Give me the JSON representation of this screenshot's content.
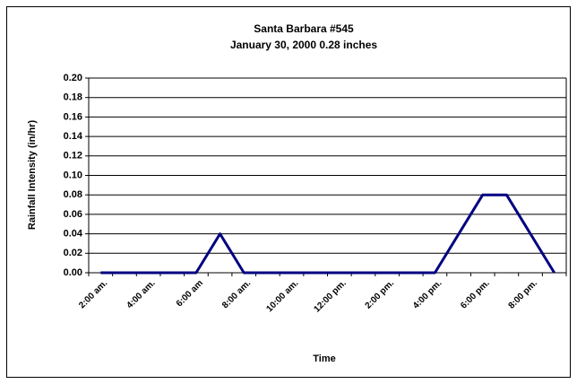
{
  "chart_data": {
    "type": "line",
    "title": "Santa Barbara #545",
    "subtitle": "January 30, 2000 0.28 inches",
    "x_label": "Time",
    "y_label": "Rainfall Intensity (in/hr)",
    "categories": [
      "2:00 am.",
      null,
      "4:00 am.",
      null,
      "6:00 am",
      null,
      "8:00 am.",
      null,
      "10:00 am.",
      null,
      "12:00 pm.",
      null,
      "2:00 pm.",
      null,
      "4:00 pm.",
      null,
      "6:00 pm.",
      null,
      "8:00 pm.",
      null
    ],
    "values": [
      0,
      0,
      0,
      0,
      0,
      0.04,
      0,
      0,
      0,
      0,
      0,
      0,
      0,
      0,
      0,
      0.04,
      0.08,
      0.08,
      0.04,
      0
    ],
    "color": "#000080",
    "ylim": [
      0,
      0.2
    ],
    "yticks": [
      {
        "value": 0,
        "label": "0.00"
      },
      {
        "value": 0.02,
        "label": "0.02"
      },
      {
        "value": 0.04,
        "label": "0.04"
      },
      {
        "value": 0.06,
        "label": "0.06"
      },
      {
        "value": 0.08,
        "label": "0.08"
      },
      {
        "value": 0.1,
        "label": "0.10"
      },
      {
        "value": 0.12,
        "label": "0.12"
      },
      {
        "value": 0.14,
        "label": "0.14"
      },
      {
        "value": 0.16,
        "label": "0.16"
      },
      {
        "value": 0.18,
        "label": "0.18"
      },
      {
        "value": 0.2,
        "label": "0.20"
      }
    ],
    "grid": true
  }
}
